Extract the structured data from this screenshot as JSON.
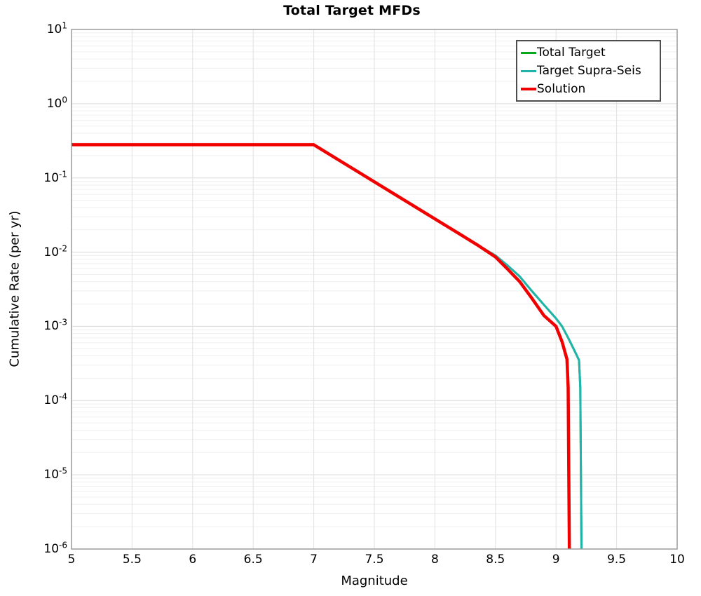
{
  "figure": {
    "title": "Total Target MFDs",
    "xlabel": "Magnitude",
    "ylabel": "Cumulative Rate (per yr)"
  },
  "chart_data": {
    "type": "line",
    "title": "Total Target MFDs",
    "xlabel": "Magnitude",
    "ylabel": "Cumulative Rate (per yr)",
    "x_axis": {
      "min": 5,
      "max": 10,
      "ticks": [
        5,
        5.5,
        6,
        6.5,
        7,
        7.5,
        8,
        8.5,
        9,
        9.5,
        10
      ],
      "tick_labels": [
        "5",
        "5.5",
        "6",
        "6.5",
        "7",
        "7.5",
        "8",
        "8.5",
        "9",
        "9.5",
        "10"
      ]
    },
    "y_axis": {
      "scale": "log",
      "min": 1e-06,
      "max": 10,
      "tick_exponents": [
        1,
        0,
        -1,
        -2,
        -3,
        -4,
        -5,
        -6
      ]
    },
    "grid": {
      "vertical": true,
      "horizontal_major": true,
      "horizontal_minor": true
    },
    "legend": {
      "position": "top-right",
      "entries": [
        "Total Target",
        "Target Supra-Seis",
        "Solution"
      ]
    },
    "series": [
      {
        "name": "Total Target",
        "color": "#0aa71e",
        "width": 3,
        "points": [
          [
            5.0,
            0.28
          ],
          [
            7.0,
            0.28
          ],
          [
            7.5,
            0.0885
          ],
          [
            8.0,
            0.028
          ],
          [
            8.2,
            0.0177
          ],
          [
            8.35,
            0.0125
          ],
          [
            8.5,
            0.009
          ],
          [
            8.6,
            0.0066
          ],
          [
            8.7,
            0.0047
          ],
          [
            8.8,
            0.003
          ],
          [
            8.9,
            0.00195
          ],
          [
            9.0,
            0.00128
          ],
          [
            9.05,
            0.001
          ],
          [
            9.1,
            0.0007
          ],
          [
            9.15,
            0.00048
          ],
          [
            9.19,
            0.00035
          ],
          [
            9.2,
            0.00015
          ],
          [
            9.21,
            1e-06
          ]
        ]
      },
      {
        "name": "Target Supra-Seis",
        "color": "#20b4ab",
        "width": 3,
        "points": [
          [
            5.0,
            0.28
          ],
          [
            7.0,
            0.28
          ],
          [
            7.5,
            0.0885
          ],
          [
            8.0,
            0.028
          ],
          [
            8.2,
            0.0177
          ],
          [
            8.35,
            0.0125
          ],
          [
            8.5,
            0.009
          ],
          [
            8.6,
            0.0066
          ],
          [
            8.7,
            0.0047
          ],
          [
            8.8,
            0.003
          ],
          [
            8.9,
            0.00195
          ],
          [
            9.0,
            0.00128
          ],
          [
            9.05,
            0.001
          ],
          [
            9.1,
            0.0007
          ],
          [
            9.15,
            0.00048
          ],
          [
            9.19,
            0.00035
          ],
          [
            9.2,
            0.00015
          ],
          [
            9.21,
            1e-06
          ]
        ]
      },
      {
        "name": "Solution",
        "color": "#f10000",
        "width": 4.5,
        "points": [
          [
            5.0,
            0.28
          ],
          [
            7.0,
            0.28
          ],
          [
            7.5,
            0.0885
          ],
          [
            8.0,
            0.028
          ],
          [
            8.2,
            0.0177
          ],
          [
            8.35,
            0.0125
          ],
          [
            8.5,
            0.0086
          ],
          [
            8.6,
            0.0059
          ],
          [
            8.7,
            0.004
          ],
          [
            8.8,
            0.0024
          ],
          [
            8.9,
            0.0014
          ],
          [
            9.0,
            0.001
          ],
          [
            9.05,
            0.00062
          ],
          [
            9.09,
            0.00036
          ],
          [
            9.1,
            0.00015
          ],
          [
            9.11,
            1e-06
          ]
        ]
      }
    ]
  }
}
